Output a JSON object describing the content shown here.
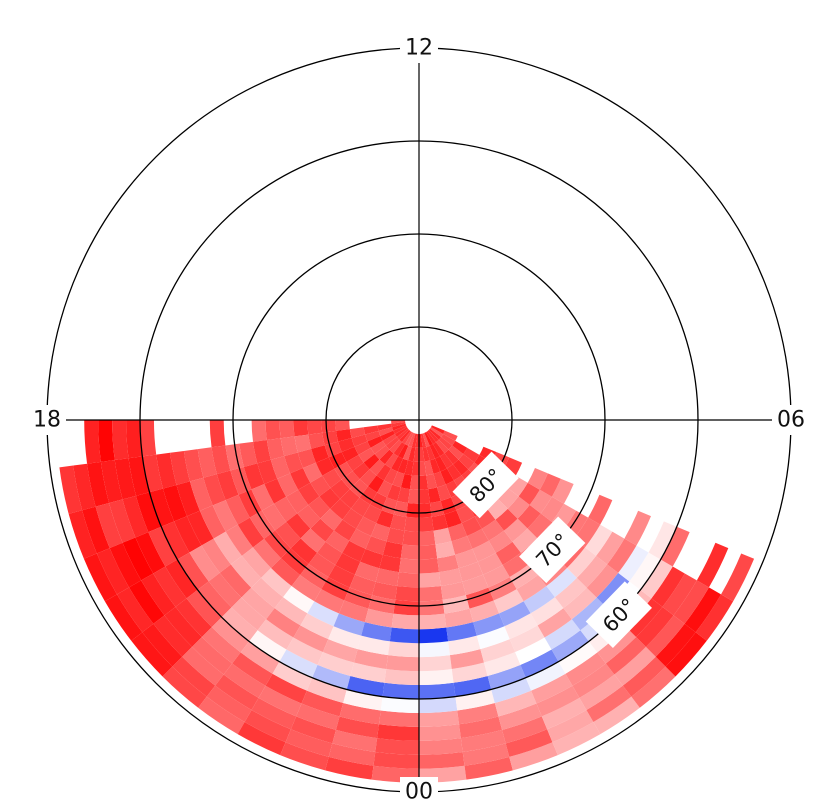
{
  "chart_data": {
    "type": "heatmap",
    "projection": "polar",
    "grid": true,
    "center_latitude": 90,
    "outer_latitude": 50,
    "radial_unit": "degrees magnetic latitude",
    "angular_unit": "magnetic local time (hours)",
    "mlt_tick_labels": [
      {
        "mlt": 12,
        "label": "12"
      },
      {
        "mlt": 6,
        "label": "06"
      },
      {
        "mlt": 0,
        "label": "00"
      },
      {
        "mlt": 18,
        "label": "18"
      }
    ],
    "latitude_rings": [
      {
        "lat": 80,
        "label": "80°"
      },
      {
        "lat": 70,
        "label": "70°"
      },
      {
        "lat": 60,
        "label": "60°"
      }
    ],
    "colormap": {
      "low": "#0022ee",
      "mid": "#ffffff",
      "high": "#ff0000",
      "min": -1,
      "max": 1
    },
    "coverage": {
      "lat_bin_deg": 1.5,
      "lat_min": 51,
      "lat_max": 89,
      "mlt_bin_hours": 0.5,
      "sector_start_mlt": 18,
      "sector_end_mlt": 4.3,
      "sector_direction": "through 00 MLT"
    },
    "values_description": "signed value per cell, positive = red, negative = blue",
    "blue_bands": [
      {
        "lat_center": 66.5,
        "lat_width": 1.3,
        "mlt_center": 0.3,
        "mlt_width": 2.6,
        "strength": 0.85
      },
      {
        "lat_center": 60.5,
        "lat_width": 1.4,
        "mlt_center": 0.2,
        "mlt_width": 2.8,
        "strength": 0.9
      },
      {
        "lat_center": 62.0,
        "lat_width": 1.0,
        "mlt_center": 3.0,
        "mlt_width": 1.2,
        "strength": 0.6
      }
    ]
  }
}
